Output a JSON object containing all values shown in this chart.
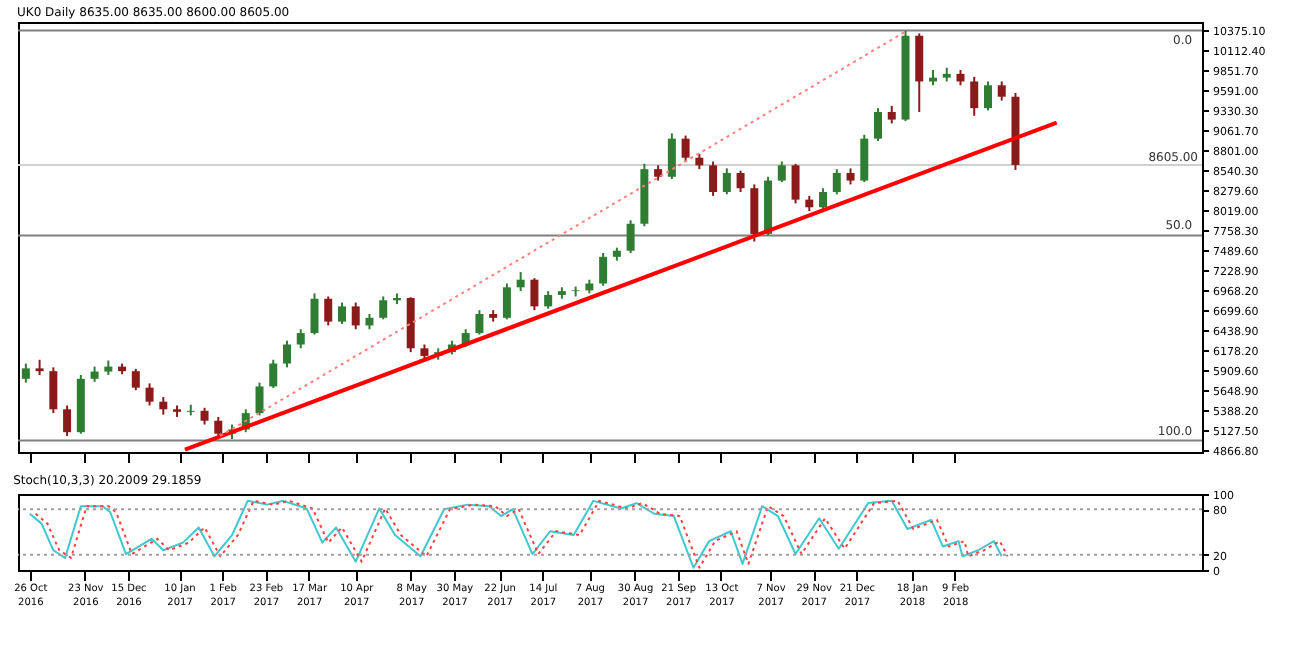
{
  "chart_data": [
    {
      "type": "candlestick",
      "title": "UK0 Daily 8635.00 8635.00 8600.00 8605.00",
      "x": [
        "2016-10-24",
        "2016-10-31",
        "2016-11-07",
        "2016-11-14",
        "2016-11-21",
        "2016-11-28",
        "2016-12-05",
        "2016-12-12",
        "2016-12-19",
        "2016-12-26",
        "2017-01-02",
        "2017-01-09",
        "2017-01-16",
        "2017-01-23",
        "2017-01-30",
        "2017-02-06",
        "2017-02-13",
        "2017-02-20",
        "2017-02-27",
        "2017-03-06",
        "2017-03-13",
        "2017-03-20",
        "2017-03-27",
        "2017-04-03",
        "2017-04-10",
        "2017-04-17",
        "2017-04-24",
        "2017-05-01",
        "2017-05-08",
        "2017-05-15",
        "2017-05-22",
        "2017-05-29",
        "2017-06-05",
        "2017-06-12",
        "2017-06-19",
        "2017-06-26",
        "2017-07-03",
        "2017-07-10",
        "2017-07-17",
        "2017-07-24",
        "2017-07-31",
        "2017-08-07",
        "2017-08-14",
        "2017-08-21",
        "2017-08-28",
        "2017-09-04",
        "2017-09-11",
        "2017-09-18",
        "2017-09-25",
        "2017-10-02",
        "2017-10-09",
        "2017-10-16",
        "2017-10-23",
        "2017-10-30",
        "2017-11-06",
        "2017-11-13",
        "2017-11-20",
        "2017-11-27",
        "2017-12-04",
        "2017-12-11",
        "2017-12-18",
        "2017-12-25",
        "2018-01-01",
        "2018-01-08",
        "2018-01-15",
        "2018-01-22",
        "2018-01-29",
        "2018-02-05",
        "2018-02-12",
        "2018-02-19",
        "2018-02-26",
        "2018-03-05",
        "2018-03-12"
      ],
      "ohlc": [
        [
          5800,
          6000,
          5750,
          5937
        ],
        [
          5937,
          6050,
          5850,
          5900
        ],
        [
          5900,
          5950,
          5350,
          5400
        ],
        [
          5400,
          5450,
          5050,
          5100
        ],
        [
          5100,
          5850,
          5080,
          5800
        ],
        [
          5800,
          5960,
          5760,
          5895
        ],
        [
          5895,
          6040,
          5850,
          5960
        ],
        [
          5960,
          6000,
          5860,
          5900
        ],
        [
          5900,
          5930,
          5650,
          5684
        ],
        [
          5684,
          5740,
          5450,
          5500
        ],
        [
          5500,
          5560,
          5330,
          5400
        ],
        [
          5400,
          5450,
          5300,
          5367
        ],
        [
          5367,
          5460,
          5320,
          5380
        ],
        [
          5380,
          5420,
          5200,
          5250
        ],
        [
          5250,
          5300,
          5040,
          5080
        ],
        [
          5080,
          5200,
          5010,
          5135
        ],
        [
          5135,
          5400,
          5100,
          5350
        ],
        [
          5350,
          5750,
          5320,
          5700
        ],
        [
          5700,
          6050,
          5680,
          6000
        ],
        [
          6000,
          6300,
          5950,
          6250
        ],
        [
          6250,
          6450,
          6200,
          6400
        ],
        [
          6400,
          6920,
          6380,
          6850
        ],
        [
          6850,
          6880,
          6500,
          6550
        ],
        [
          6550,
          6800,
          6520,
          6750
        ],
        [
          6750,
          6800,
          6450,
          6500
        ],
        [
          6500,
          6650,
          6450,
          6600
        ],
        [
          6600,
          6880,
          6580,
          6830
        ],
        [
          6830,
          6920,
          6780,
          6860
        ],
        [
          6860,
          6870,
          6150,
          6200
        ],
        [
          6200,
          6250,
          6060,
          6100
        ],
        [
          6100,
          6200,
          6050,
          6150
        ],
        [
          6150,
          6300,
          6120,
          6250
        ],
        [
          6250,
          6450,
          6220,
          6400
        ],
        [
          6400,
          6700,
          6380,
          6650
        ],
        [
          6650,
          6700,
          6550,
          6600
        ],
        [
          6600,
          7050,
          6580,
          7000
        ],
        [
          7000,
          7200,
          6950,
          7100
        ],
        [
          7100,
          7120,
          6700,
          6750
        ],
        [
          6750,
          6950,
          6720,
          6900
        ],
        [
          6900,
          7000,
          6850,
          6950
        ],
        [
          6950,
          7010,
          6880,
          6960
        ],
        [
          6960,
          7100,
          6920,
          7050
        ],
        [
          7050,
          7450,
          7020,
          7400
        ],
        [
          7400,
          7520,
          7350,
          7480
        ],
        [
          7480,
          7880,
          7450,
          7834
        ],
        [
          7834,
          8620,
          7800,
          8550
        ],
        [
          8550,
          8600,
          8400,
          8450
        ],
        [
          8450,
          9020,
          8420,
          8950
        ],
        [
          8950,
          8990,
          8650,
          8700
        ],
        [
          8700,
          8750,
          8550,
          8600
        ],
        [
          8600,
          8650,
          8200,
          8250
        ],
        [
          8250,
          8560,
          8220,
          8500
        ],
        [
          8500,
          8530,
          8250,
          8300
        ],
        [
          8300,
          8350,
          7600,
          7700
        ],
        [
          7700,
          8450,
          7680,
          8400
        ],
        [
          8400,
          8650,
          8380,
          8600
        ],
        [
          8600,
          8620,
          8100,
          8150
        ],
        [
          8150,
          8200,
          8000,
          8050
        ],
        [
          8050,
          8300,
          8020,
          8250
        ],
        [
          8250,
          8550,
          8220,
          8500
        ],
        [
          8500,
          8560,
          8350,
          8400
        ],
        [
          8400,
          9000,
          8380,
          8950
        ],
        [
          8950,
          9350,
          8920,
          9300
        ],
        [
          9300,
          9380,
          9150,
          9200
        ],
        [
          9200,
          10366,
          9180,
          10300
        ],
        [
          10300,
          10330,
          9300,
          9700
        ],
        [
          9700,
          9850,
          9650,
          9750
        ],
        [
          9750,
          9880,
          9700,
          9800
        ],
        [
          9800,
          9850,
          9650,
          9700
        ],
        [
          9700,
          9760,
          9250,
          9350
        ],
        [
          9350,
          9700,
          9320,
          9650
        ],
        [
          9650,
          9700,
          9450,
          9500
        ],
        [
          9500,
          9550,
          8540,
          8605
        ]
      ],
      "colors": [
        "#2e7d32",
        "#8b1a1a",
        "#8b1a1a",
        "#8b1a1a",
        "#2e7d32",
        "#2e7d32",
        "#2e7d32",
        "#8b1a1a",
        "#8b1a1a",
        "#8b1a1a",
        "#8b1a1a",
        "#8b1a1a",
        "#2e7d32",
        "#8b1a1a",
        "#8b1a1a",
        "#2e7d32",
        "#2e7d32",
        "#2e7d32",
        "#2e7d32",
        "#2e7d32",
        "#2e7d32",
        "#2e7d32",
        "#8b1a1a",
        "#2e7d32",
        "#8b1a1a",
        "#2e7d32",
        "#2e7d32",
        "#2e7d32",
        "#8b1a1a",
        "#8b1a1a",
        "#2e7d32",
        "#2e7d32",
        "#2e7d32",
        "#2e7d32",
        "#8b1a1a",
        "#2e7d32",
        "#2e7d32",
        "#8b1a1a",
        "#2e7d32",
        "#2e7d32",
        "#2e7d32",
        "#2e7d32",
        "#2e7d32",
        "#2e7d32",
        "#2e7d32",
        "#2e7d32",
        "#8b1a1a",
        "#2e7d32",
        "#8b1a1a",
        "#8b1a1a",
        "#8b1a1a",
        "#2e7d32",
        "#8b1a1a",
        "#8b1a1a",
        "#2e7d32",
        "#2e7d32",
        "#8b1a1a",
        "#8b1a1a",
        "#2e7d32",
        "#2e7d32",
        "#8b1a1a",
        "#2e7d32",
        "#2e7d32",
        "#8b1a1a",
        "#2e7d32",
        "#8b1a1a",
        "#2e7d32",
        "#2e7d32",
        "#8b1a1a",
        "#8b1a1a",
        "#2e7d32",
        "#8b1a1a",
        "#8b1a1a"
      ],
      "xlim": [
        "2016-10-20",
        "2018-06-15"
      ],
      "ylim": [
        4840,
        10480
      ],
      "xticks": [
        {
          "value": "2016-10-26",
          "label": null
        },
        {
          "value": "2016-11-23",
          "label": null
        },
        {
          "value": "2016-12-15",
          "label": null
        },
        {
          "value": "2017-01-10",
          "label": null
        },
        {
          "value": "2017-02-01",
          "label": null
        },
        {
          "value": "2017-02-23",
          "label": null
        },
        {
          "value": "2017-03-17",
          "label": null
        },
        {
          "value": "2017-04-10",
          "label": null
        },
        {
          "value": "2017-05-08",
          "label": null
        },
        {
          "value": "2017-05-30",
          "label": null
        },
        {
          "value": "2017-06-22",
          "label": null
        },
        {
          "value": "2017-07-14",
          "label": null
        },
        {
          "value": "2017-08-07",
          "label": null
        },
        {
          "value": "2017-08-30",
          "label": null
        },
        {
          "value": "2017-09-21",
          "label": null
        },
        {
          "value": "2017-10-13",
          "label": null
        },
        {
          "value": "2017-11-07",
          "label": null
        },
        {
          "value": "2017-11-29",
          "label": null
        },
        {
          "value": "2017-12-21",
          "label": null
        },
        {
          "value": "2018-01-18",
          "label": null
        },
        {
          "value": "2018-02-09",
          "label": null
        }
      ],
      "yticks": [
        {
          "value": 4866.8,
          "label": "4866.80"
        },
        {
          "value": 5127.5,
          "label": "5127.50"
        },
        {
          "value": 5388.2,
          "label": "5388.20"
        },
        {
          "value": 5648.9,
          "label": "5648.90"
        },
        {
          "value": 5909.6,
          "label": "5909.60"
        },
        {
          "value": 6178.2,
          "label": "6178.20"
        },
        {
          "value": 6438.9,
          "label": "6438.90"
        },
        {
          "value": 6699.6,
          "label": "6699.60"
        },
        {
          "value": 6968.2,
          "label": "6968.20"
        },
        {
          "value": 7228.9,
          "label": "7228.90"
        },
        {
          "value": 7489.6,
          "label": "7489.60"
        },
        {
          "value": 7758.3,
          "label": "7758.30"
        },
        {
          "value": 8019,
          "label": "8019.00"
        },
        {
          "value": 8279.6,
          "label": "8279.60"
        },
        {
          "value": 8540.3,
          "label": "8540.30"
        },
        {
          "value": 8801,
          "label": "8801.00"
        },
        {
          "value": 9061.7,
          "label": "9061.70"
        },
        {
          "value": 9330.3,
          "label": "9330.30"
        },
        {
          "value": 9591,
          "label": "9591.00"
        },
        {
          "value": 9851.7,
          "label": "9851.70"
        },
        {
          "value": 10112.4,
          "label": "10112.40"
        },
        {
          "value": 10375.1,
          "label": "10375.10"
        }
      ],
      "tick_labels": "y",
      "annotations": [
        {
          "text": "0.0",
          "x": "2018-06-10",
          "y": 10370
        },
        {
          "text": "50.0",
          "x": "2018-06-10",
          "y": 7680
        },
        {
          "text": "100.0",
          "x": "2018-06-10",
          "y": 4990
        }
      ],
      "ref_lines": [
        {
          "axis": "y",
          "value": 10370,
          "color": "#808080"
        },
        {
          "axis": "y",
          "value": 7680,
          "color": "#808080"
        },
        {
          "axis": "y",
          "value": 4990,
          "color": "#808080"
        },
        {
          "axis": "y",
          "value": 8605,
          "label": "8605.00",
          "color": "#d0d0d0"
        }
      ],
      "series": [
        {
          "type": "line",
          "color": "#ff0000",
          "x": [
            "2017-01-13",
            "2018-04-02"
          ],
          "values": [
            4870,
            9160
          ]
        },
        {
          "type": "line",
          "color": "#ff8080",
          "line_style": "dotted",
          "x": [
            "2017-01-31",
            "2018-01-16"
          ],
          "values": [
            5050,
            10370
          ]
        }
      ]
    },
    {
      "type": "line",
      "title": "Stoch(10,3,3) 20.2009 29.1859",
      "x": [
        "2016-10-26",
        "2016-11-01",
        "2016-11-07",
        "2016-11-13",
        "2016-11-21",
        "2016-12-02",
        "2016-12-06",
        "2016-12-14",
        "2016-12-27",
        "2017-01-02",
        "2017-01-12",
        "2017-01-20",
        "2017-01-28",
        "2017-02-06",
        "2017-02-14",
        "2017-02-24",
        "2017-03-04",
        "2017-03-16",
        "2017-03-24",
        "2017-03-31",
        "2017-04-10",
        "2017-04-22",
        "2017-04-30",
        "2017-05-13",
        "2017-05-25",
        "2017-06-06",
        "2017-06-17",
        "2017-06-23",
        "2017-06-29",
        "2017-07-09",
        "2017-07-18",
        "2017-07-30",
        "2017-08-09",
        "2017-08-23",
        "2017-08-31",
        "2017-09-09",
        "2017-09-19",
        "2017-09-29",
        "2017-10-07",
        "2017-10-18",
        "2017-10-24",
        "2017-11-03",
        "2017-11-11",
        "2017-11-20",
        "2017-12-02",
        "2017-12-12",
        "2017-12-27",
        "2018-01-08",
        "2018-01-16",
        "2018-01-28",
        "2018-02-03",
        "2018-02-11",
        "2018-02-13",
        "2018-02-21",
        "2018-03-01",
        "2018-03-05"
      ],
      "series": [
        {
          "color": "#40c8d0",
          "values": [
            74,
            61,
            26,
            16,
            84,
            84,
            76,
            21,
            41,
            26,
            36,
            56,
            18,
            46,
            91,
            86,
            91,
            81,
            36,
            56,
            11,
            81,
            46,
            18,
            80,
            86,
            84,
            71,
            80,
            21,
            51,
            46,
            91,
            81,
            88,
            74,
            71,
            3,
            38,
            51,
            8,
            84,
            71,
            21,
            68,
            28,
            88,
            91,
            54,
            66,
            31,
            38,
            18,
            26,
            38,
            18
          ]
        },
        {
          "color": "#ff4040",
          "line_style": "dotted",
          "x": [
            "2016-10-29",
            "2016-11-04",
            "2016-11-10",
            "2016-11-16",
            "2016-11-24",
            "2016-12-05",
            "2016-12-09",
            "2016-12-17",
            "2016-12-30",
            "2017-01-05",
            "2017-01-15",
            "2017-01-23",
            "2017-01-31",
            "2017-02-09",
            "2017-02-17",
            "2017-02-27",
            "2017-03-07",
            "2017-03-19",
            "2017-03-27",
            "2017-04-03",
            "2017-04-13",
            "2017-04-25",
            "2017-05-03",
            "2017-05-16",
            "2017-05-28",
            "2017-06-09",
            "2017-06-20",
            "2017-06-26",
            "2017-07-02",
            "2017-07-12",
            "2017-07-21",
            "2017-08-02",
            "2017-08-12",
            "2017-08-26",
            "2017-09-03",
            "2017-09-12",
            "2017-09-22",
            "2017-10-02",
            "2017-10-10",
            "2017-10-21",
            "2017-10-27",
            "2017-11-06",
            "2017-11-14",
            "2017-11-23",
            "2017-12-05",
            "2017-12-15",
            "2017-12-30",
            "2018-01-11",
            "2018-01-19",
            "2018-01-31",
            "2018-02-06",
            "2018-02-14",
            "2018-02-16",
            "2018-02-24",
            "2018-03-04",
            "2018-03-08"
          ],
          "values": [
            74,
            61,
            26,
            16,
            84,
            84,
            76,
            21,
            41,
            26,
            36,
            56,
            18,
            46,
            91,
            86,
            91,
            81,
            36,
            56,
            11,
            81,
            46,
            18,
            80,
            86,
            84,
            71,
            80,
            21,
            51,
            46,
            91,
            81,
            88,
            74,
            71,
            3,
            38,
            51,
            8,
            84,
            71,
            21,
            68,
            28,
            88,
            91,
            54,
            66,
            31,
            38,
            18,
            26,
            38,
            18
          ]
        }
      ],
      "xlim": [
        "2016-10-20",
        "2018-06-15"
      ],
      "ylim": [
        0,
        100
      ],
      "yticks": [
        0,
        20,
        80,
        100
      ],
      "xticks": [
        {
          "value": "2016-10-26",
          "label": "26 Oct 2016"
        },
        {
          "value": "2016-11-23",
          "label": "23 Nov 2016"
        },
        {
          "value": "2016-12-15",
          "label": "15 Dec 2016"
        },
        {
          "value": "2017-01-10",
          "label": "10 Jan 2017"
        },
        {
          "value": "2017-02-01",
          "label": "1 Feb 2017"
        },
        {
          "value": "2017-02-23",
          "label": "23 Feb 2017"
        },
        {
          "value": "2017-03-17",
          "label": "17 Mar 2017"
        },
        {
          "value": "2017-04-10",
          "label": "10 Apr 2017"
        },
        {
          "value": "2017-05-08",
          "label": "8 May 2017"
        },
        {
          "value": "2017-05-30",
          "label": "30 May 2017"
        },
        {
          "value": "2017-06-22",
          "label": "22 Jun 2017"
        },
        {
          "value": "2017-07-14",
          "label": "14 Jul 2017"
        },
        {
          "value": "2017-08-07",
          "label": "7 Aug 2017"
        },
        {
          "value": "2017-08-30",
          "label": "30 Aug 2017"
        },
        {
          "value": "2017-09-21",
          "label": "21 Sep 2017"
        },
        {
          "value": "2017-10-13",
          "label": "13 Oct 2017"
        },
        {
          "value": "2017-11-07",
          "label": "7 Nov 2017"
        },
        {
          "value": "2017-11-29",
          "label": "29 Nov 2017"
        },
        {
          "value": "2017-12-21",
          "label": "21 Dec 2017"
        },
        {
          "value": "2018-01-18",
          "label": "18 Jan 2018"
        },
        {
          "value": "2018-02-09",
          "label": "9 Feb 2018"
        }
      ],
      "ref_lines": [
        {
          "axis": "y",
          "value": 80,
          "color": "#a0a0a0",
          "line_style": "dotted"
        },
        {
          "axis": "y",
          "value": 20,
          "color": "#a0a0a0",
          "line_style": "dotted"
        }
      ]
    }
  ]
}
